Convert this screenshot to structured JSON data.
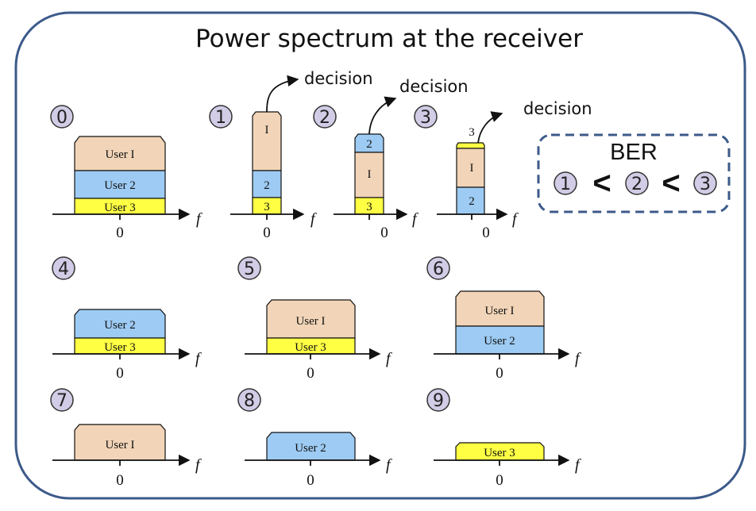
{
  "title": "Power spectrum at the receiver",
  "decision_label": "decision",
  "ber": {
    "label": "BER",
    "sequence": [
      "1",
      "<",
      "2",
      "<",
      "3"
    ]
  },
  "axis": {
    "zero": "0",
    "f": "f"
  },
  "colors": {
    "user1": "#f2d5b8",
    "user2": "#9dcbf3",
    "user3": "#ffff44",
    "circle": "#d2cce6",
    "frame": "#3c5a8a"
  },
  "panels": [
    {
      "id": "0",
      "label": "0",
      "layers": [
        "User 3",
        "User 2",
        "User I"
      ]
    },
    {
      "id": "1",
      "label": "1",
      "layers": [
        "3",
        "2",
        "I"
      ],
      "decision": true
    },
    {
      "id": "2",
      "label": "2",
      "layers": [
        "3",
        "I",
        "2"
      ],
      "decision": true
    },
    {
      "id": "3",
      "label": "3",
      "layers": [
        "2",
        "I",
        "3"
      ],
      "decision": true
    },
    {
      "id": "4",
      "label": "4",
      "layers": [
        "User 3",
        "User 2"
      ]
    },
    {
      "id": "5",
      "label": "5",
      "layers": [
        "User 3",
        "User I"
      ]
    },
    {
      "id": "6",
      "label": "6",
      "layers": [
        "User 2",
        "User I"
      ]
    },
    {
      "id": "7",
      "label": "7",
      "layers": [
        "User I"
      ]
    },
    {
      "id": "8",
      "label": "8",
      "layers": [
        "User 2"
      ]
    },
    {
      "id": "9",
      "label": "9",
      "layers": [
        "User 3"
      ]
    }
  ]
}
